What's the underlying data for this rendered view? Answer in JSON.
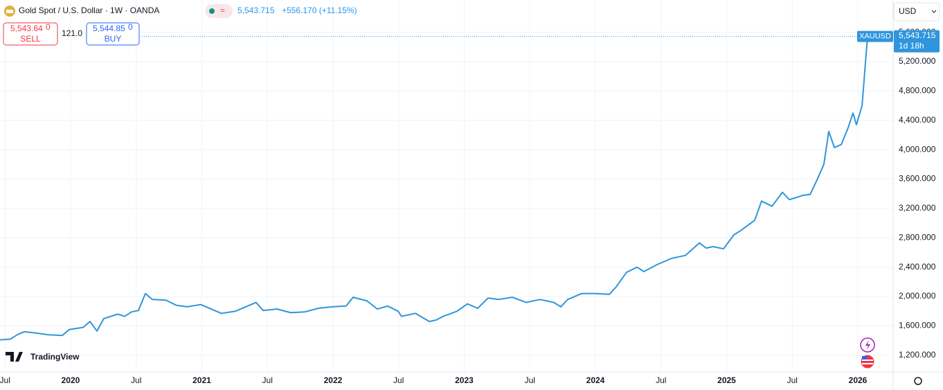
{
  "header": {
    "symbol": "Gold Spot / U.S. Dollar · 1W · OANDA",
    "price": "5,543.715",
    "change": "+556.170 (+11.15%)"
  },
  "trade": {
    "sell_price": "5,543.64",
    "sell_sub": "0",
    "sell_label": "SELL",
    "spread": "121.0",
    "buy_price": "5,544.85",
    "buy_sub": "0",
    "buy_label": "BUY"
  },
  "currency": "USD",
  "logo": "TradingView",
  "chart_data": {
    "type": "line",
    "series": [
      {
        "name": "XAUUSD",
        "color": "#2f95dc",
        "values": [
          1410,
          1420,
          1480,
          1520,
          1505,
          1480,
          1470,
          1550,
          1580,
          1660,
          1530,
          1700,
          1760,
          1730,
          1790,
          1810,
          2040,
          1960,
          1950,
          1880,
          1860,
          1890,
          1830,
          1770,
          1800,
          1880,
          1920,
          1810,
          1830,
          1780,
          1790,
          1840,
          1860,
          1870,
          1990,
          1940,
          1830,
          1870,
          1800,
          1730,
          1770,
          1660,
          1680,
          1730,
          1800,
          1900,
          1840,
          1980,
          1960,
          1990,
          1920,
          1960,
          1920,
          1860,
          1960,
          2040,
          2040,
          2030,
          2130,
          2330,
          2400,
          2340,
          2440,
          2520,
          2560,
          2730,
          2660,
          2680,
          2650,
          2840,
          2900,
          3040,
          3300,
          3230,
          3420,
          3320,
          3380,
          3390,
          3590,
          3800,
          4250,
          4030,
          4070,
          4300,
          4500,
          4340,
          4600,
          5543.715
        ]
      }
    ],
    "x": [
      2019.462,
      2019.541,
      2019.594,
      2019.646,
      2019.726,
      2019.831,
      2019.937,
      2019.989,
      2020.095,
      2020.148,
      2020.201,
      2020.253,
      2020.359,
      2020.412,
      2020.464,
      2020.517,
      2020.57,
      2020.623,
      2020.728,
      2020.807,
      2020.887,
      2020.992,
      2021.071,
      2021.15,
      2021.256,
      2021.361,
      2021.414,
      2021.467,
      2021.573,
      2021.678,
      2021.784,
      2021.889,
      2021.995,
      2022.1,
      2022.153,
      2022.259,
      2022.338,
      2022.417,
      2022.496,
      2022.522,
      2022.628,
      2022.734,
      2022.786,
      2022.839,
      2022.945,
      2023.024,
      2023.103,
      2023.182,
      2023.261,
      2023.367,
      2023.472,
      2023.578,
      2023.683,
      2023.736,
      2023.789,
      2023.894,
      2024.0,
      2024.106,
      2024.158,
      2024.237,
      2024.317,
      2024.369,
      2024.475,
      2024.58,
      2024.686,
      2024.792,
      2024.844,
      2024.897,
      2024.976,
      2025.055,
      2025.108,
      2025.214,
      2025.266,
      2025.346,
      2025.425,
      2025.478,
      2025.583,
      2025.636,
      2025.689,
      2025.741,
      2025.778,
      2025.821,
      2025.873,
      2025.926,
      2025.963,
      2025.989,
      2026.032,
      2026.074
    ],
    "xlim": [
      2019.462,
      2026.269
    ],
    "xticks": [
      {
        "value": 2019.5,
        "label": "Jul"
      },
      2020,
      {
        "value": 2020.5,
        "label": "Jul"
      },
      2021,
      {
        "value": 2021.5,
        "label": "Jul"
      },
      2022,
      {
        "value": 2022.5,
        "label": "Jul"
      },
      2023,
      {
        "value": 2023.5,
        "label": "Jul"
      },
      2024,
      {
        "value": 2024.5,
        "label": "Jul"
      },
      2025,
      {
        "value": 2025.5,
        "label": "Jul"
      },
      2026
    ],
    "ylim": [
      972,
      6040
    ],
    "yticks": [
      {
        "value": 1200,
        "label": "1,200.000"
      },
      {
        "value": 1600,
        "label": "1,600.000"
      },
      {
        "value": 2000,
        "label": "2,000.000"
      },
      {
        "value": 2400,
        "label": "2,400.000"
      },
      {
        "value": 2800,
        "label": "2,800.000"
      },
      {
        "value": 3200,
        "label": "3,200.000"
      },
      {
        "value": 3600,
        "label": "3,600.000"
      },
      {
        "value": 4000,
        "label": "4,000.000"
      },
      {
        "value": 4400,
        "label": "4,400.000"
      },
      {
        "value": 4800,
        "label": "4,800.000"
      },
      {
        "value": 5200,
        "label": "5,200.000"
      },
      {
        "value": 5600,
        "label": "5,600.000"
      }
    ],
    "grid": true,
    "last_price": {
      "value": 5543.715,
      "label": "5,543.715"
    },
    "countdown": "1d 18h"
  }
}
